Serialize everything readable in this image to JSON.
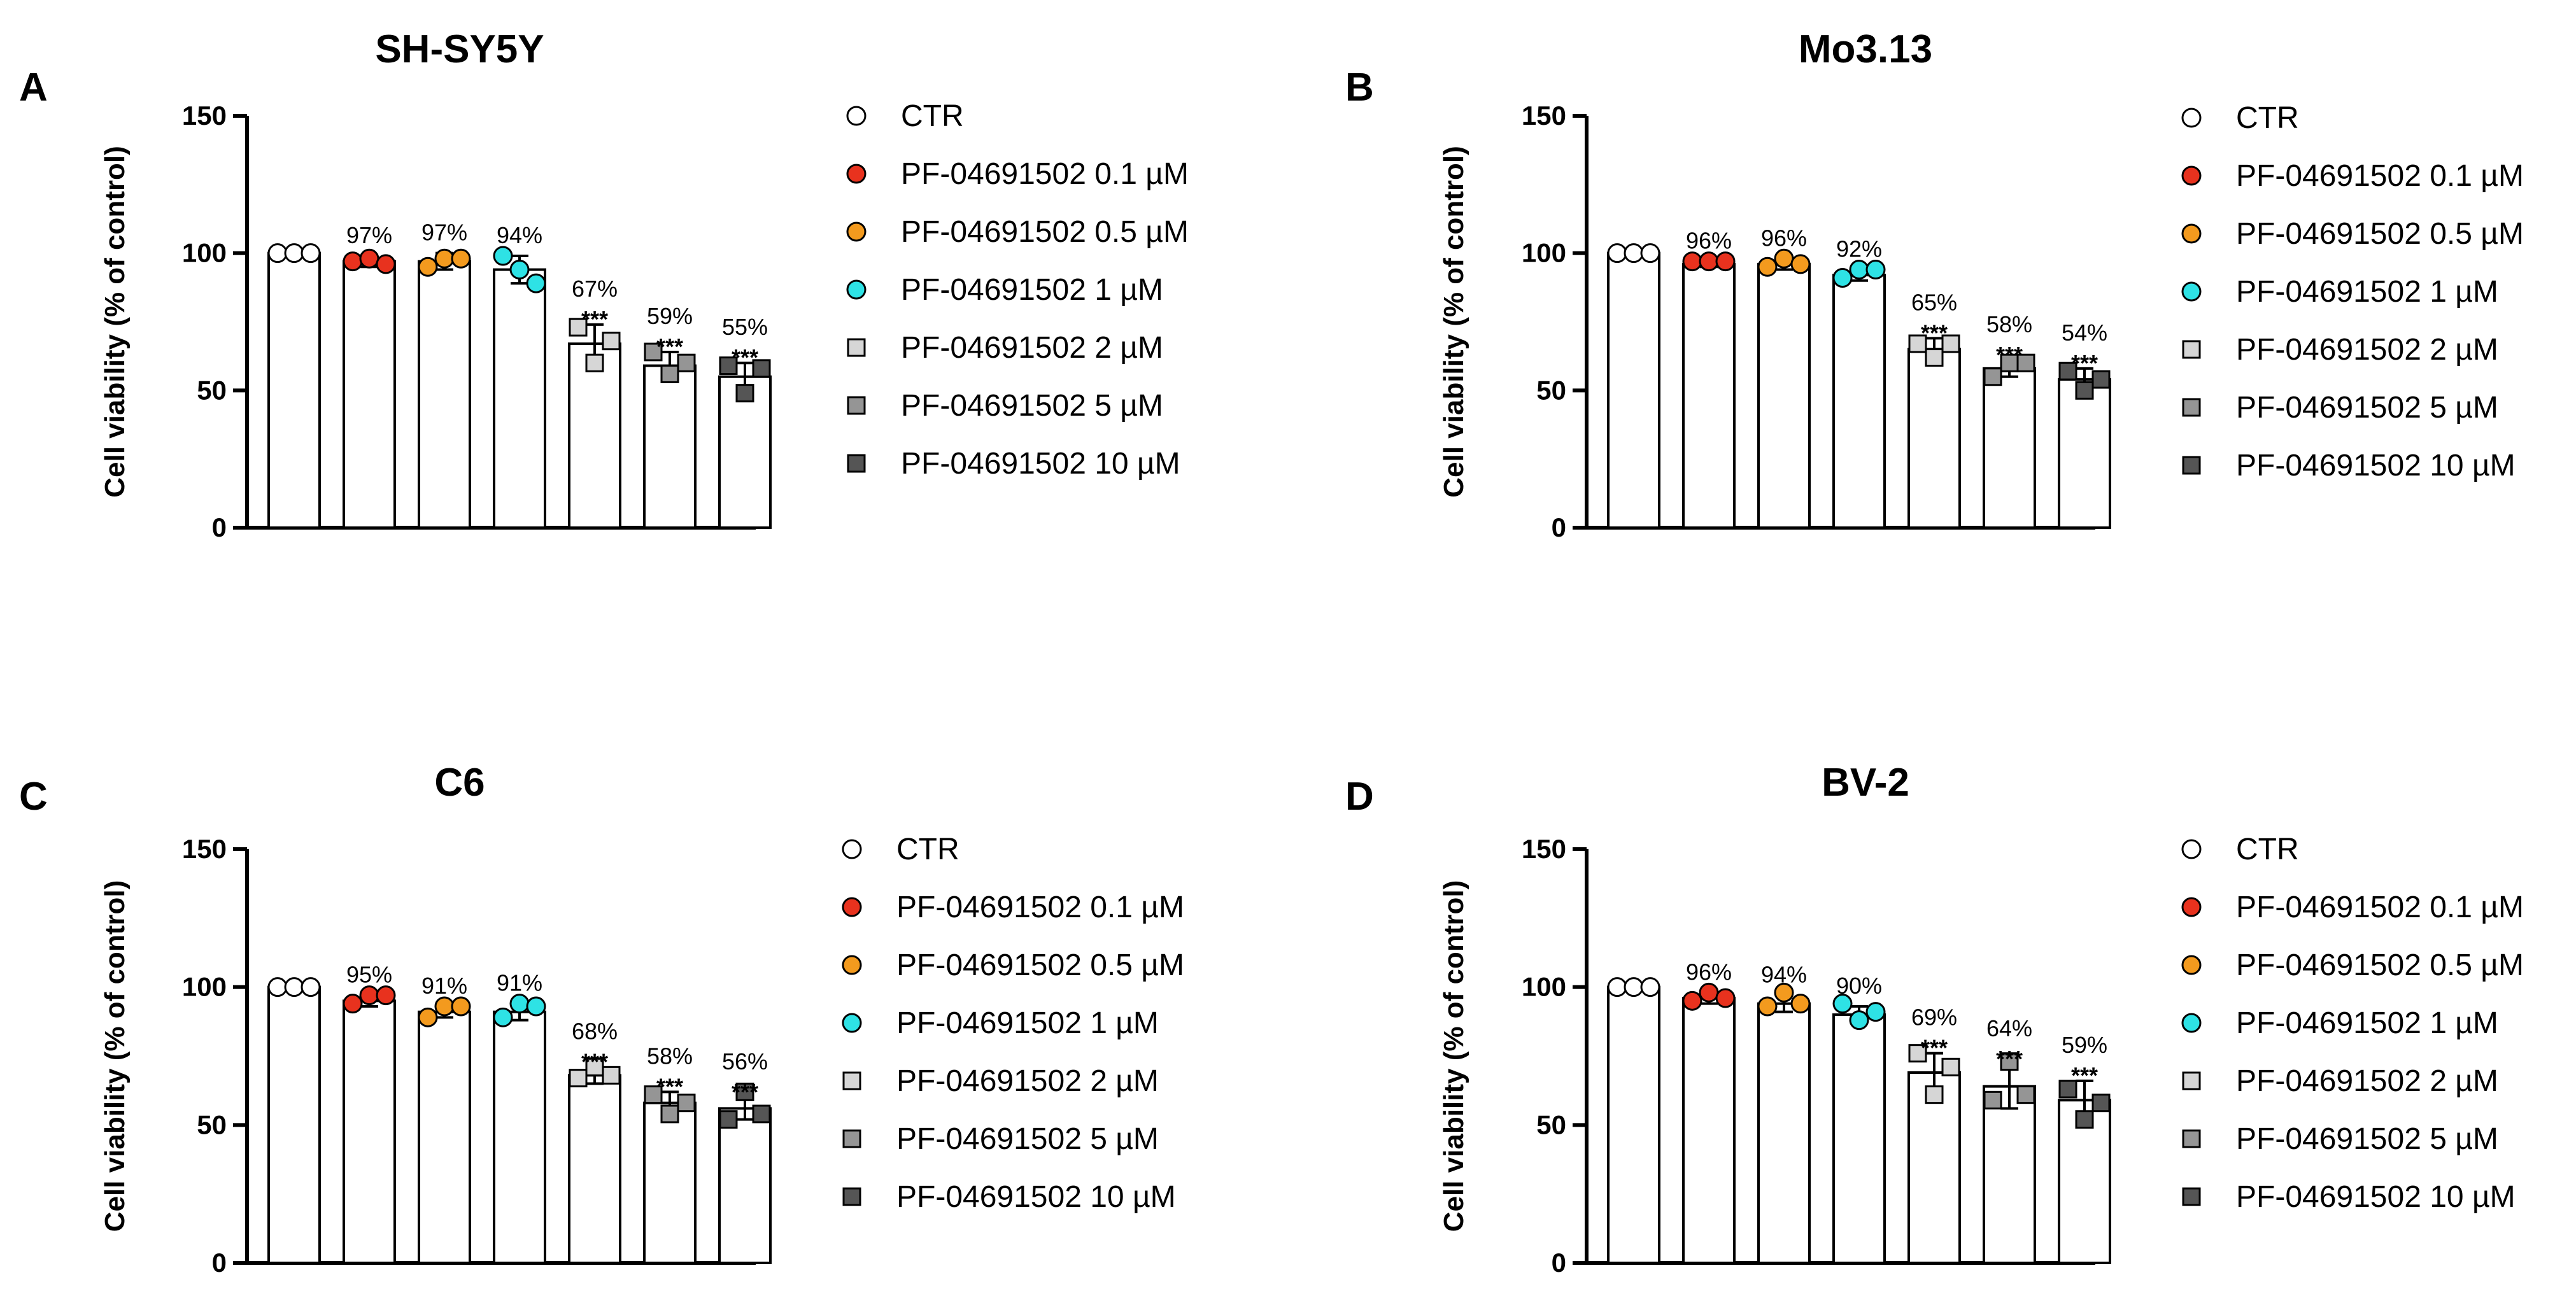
{
  "chart_data": [
    {
      "type": "bar",
      "panel": "A",
      "title": "SH-SY5Y",
      "ylabel": "Cell viability (% of control)",
      "ylim": [
        0,
        150
      ],
      "yticks": [
        0,
        50,
        100,
        150
      ],
      "categories": [
        "CTR",
        "PF-04691502 0.1 µM",
        "PF-04691502 0.5 µM",
        "PF-04691502 1 µM",
        "PF-04691502 2 µM",
        "PF-04691502 5 µM",
        "PF-04691502 10 µM"
      ],
      "values": [
        100,
        97,
        97,
        94,
        67,
        59,
        55
      ],
      "errors": [
        1,
        2,
        3,
        5,
        7,
        5,
        5
      ],
      "points": [
        [
          100,
          100,
          100
        ],
        [
          97,
          98,
          96
        ],
        [
          95,
          98,
          98
        ],
        [
          99,
          94,
          89
        ],
        [
          73,
          60,
          68
        ],
        [
          64,
          56,
          60
        ],
        [
          59,
          49,
          58
        ]
      ],
      "labels": [
        "",
        "97%",
        "97%",
        "94%",
        "67%",
        "59%",
        "55%"
      ],
      "significance": [
        "",
        "",
        "",
        "",
        "***",
        "***",
        "***"
      ]
    },
    {
      "type": "bar",
      "panel": "B",
      "title": "Mo3.13",
      "ylabel": "Cell viability (% of control)",
      "ylim": [
        0,
        150
      ],
      "yticks": [
        0,
        50,
        100,
        150
      ],
      "categories": [
        "CTR",
        "PF-04691502 0.1 µM",
        "PF-04691502 0.5 µM",
        "PF-04691502 1 µM",
        "PF-04691502 2 µM",
        "PF-04691502 5 µM",
        "PF-04691502 10 µM"
      ],
      "values": [
        100,
        96,
        96,
        92,
        65,
        58,
        54
      ],
      "errors": [
        1,
        1,
        2,
        2,
        4,
        3,
        4
      ],
      "points": [
        [
          100,
          100,
          100
        ],
        [
          97,
          97,
          97
        ],
        [
          95,
          98,
          96
        ],
        [
          91,
          94,
          94
        ],
        [
          67,
          62,
          67
        ],
        [
          55,
          60,
          60
        ],
        [
          57,
          50,
          54
        ]
      ],
      "labels": [
        "",
        "96%",
        "96%",
        "92%",
        "65%",
        "58%",
        "54%"
      ],
      "significance": [
        "",
        "",
        "",
        "",
        "***",
        "***",
        "***"
      ]
    },
    {
      "type": "bar",
      "panel": "C",
      "title": "C6",
      "ylabel": "Cell viability (% of control)",
      "ylim": [
        0,
        150
      ],
      "yticks": [
        0,
        50,
        100,
        150
      ],
      "categories": [
        "CTR",
        "PF-04691502 0.1 µM",
        "PF-04691502 0.5 µM",
        "PF-04691502 1 µM",
        "PF-04691502 2 µM",
        "PF-04691502 5 µM",
        "PF-04691502 10 µM"
      ],
      "values": [
        100,
        95,
        91,
        91,
        68,
        58,
        56
      ],
      "errors": [
        0.5,
        2,
        2,
        3,
        3,
        4,
        4
      ],
      "points": [
        [
          100,
          100,
          100
        ],
        [
          94,
          97,
          97
        ],
        [
          89,
          93,
          93
        ],
        [
          89,
          94,
          93
        ],
        [
          67,
          71,
          68
        ],
        [
          61,
          54,
          58
        ],
        [
          52,
          62,
          54
        ]
      ],
      "labels": [
        "",
        "95%",
        "91%",
        "91%",
        "68%",
        "58%",
        "56%"
      ],
      "significance": [
        "",
        "",
        "",
        "",
        "***",
        "***",
        "***"
      ]
    },
    {
      "type": "bar",
      "panel": "D",
      "title": "BV-2",
      "ylabel": "Cell viability (% of control)",
      "ylim": [
        0,
        150
      ],
      "yticks": [
        0,
        50,
        100,
        150
      ],
      "categories": [
        "CTR",
        "PF-04691502 0.1 µM",
        "PF-04691502 0.5 µM",
        "PF-04691502 1 µM",
        "PF-04691502 2 µM",
        "PF-04691502 5 µM",
        "PF-04691502 10 µM"
      ],
      "values": [
        100,
        96,
        94,
        90,
        69,
        64,
        59
      ],
      "errors": [
        0.5,
        2,
        3,
        3,
        7,
        8,
        7
      ],
      "points": [
        [
          100,
          100,
          100
        ],
        [
          95,
          98,
          96
        ],
        [
          93,
          98,
          94
        ],
        [
          94,
          88,
          91
        ],
        [
          76,
          61,
          71
        ],
        [
          59,
          73,
          61
        ],
        [
          63,
          52,
          58
        ]
      ],
      "labels": [
        "",
        "96%",
        "94%",
        "90%",
        "69%",
        "64%",
        "59%"
      ],
      "significance": [
        "",
        "",
        "",
        "",
        "***",
        "***",
        "***"
      ]
    }
  ],
  "legend": {
    "items": [
      {
        "label": "CTR",
        "marker": "circle",
        "color": "#ffffff"
      },
      {
        "label": "PF-04691502 0.1 µM",
        "marker": "circle",
        "color": "#e8321e"
      },
      {
        "label": "PF-04691502 0.5 µM",
        "marker": "circle",
        "color": "#f39a1e"
      },
      {
        "label": "PF-04691502 1 µM",
        "marker": "circle",
        "color": "#2ee2e5"
      },
      {
        "label": "PF-04691502 2 µM",
        "marker": "square",
        "color": "#d6d6d6"
      },
      {
        "label": "PF-04691502 5 µM",
        "marker": "square",
        "color": "#959595"
      },
      {
        "label": "PF-04691502 10 µM",
        "marker": "square",
        "color": "#555555"
      }
    ]
  }
}
